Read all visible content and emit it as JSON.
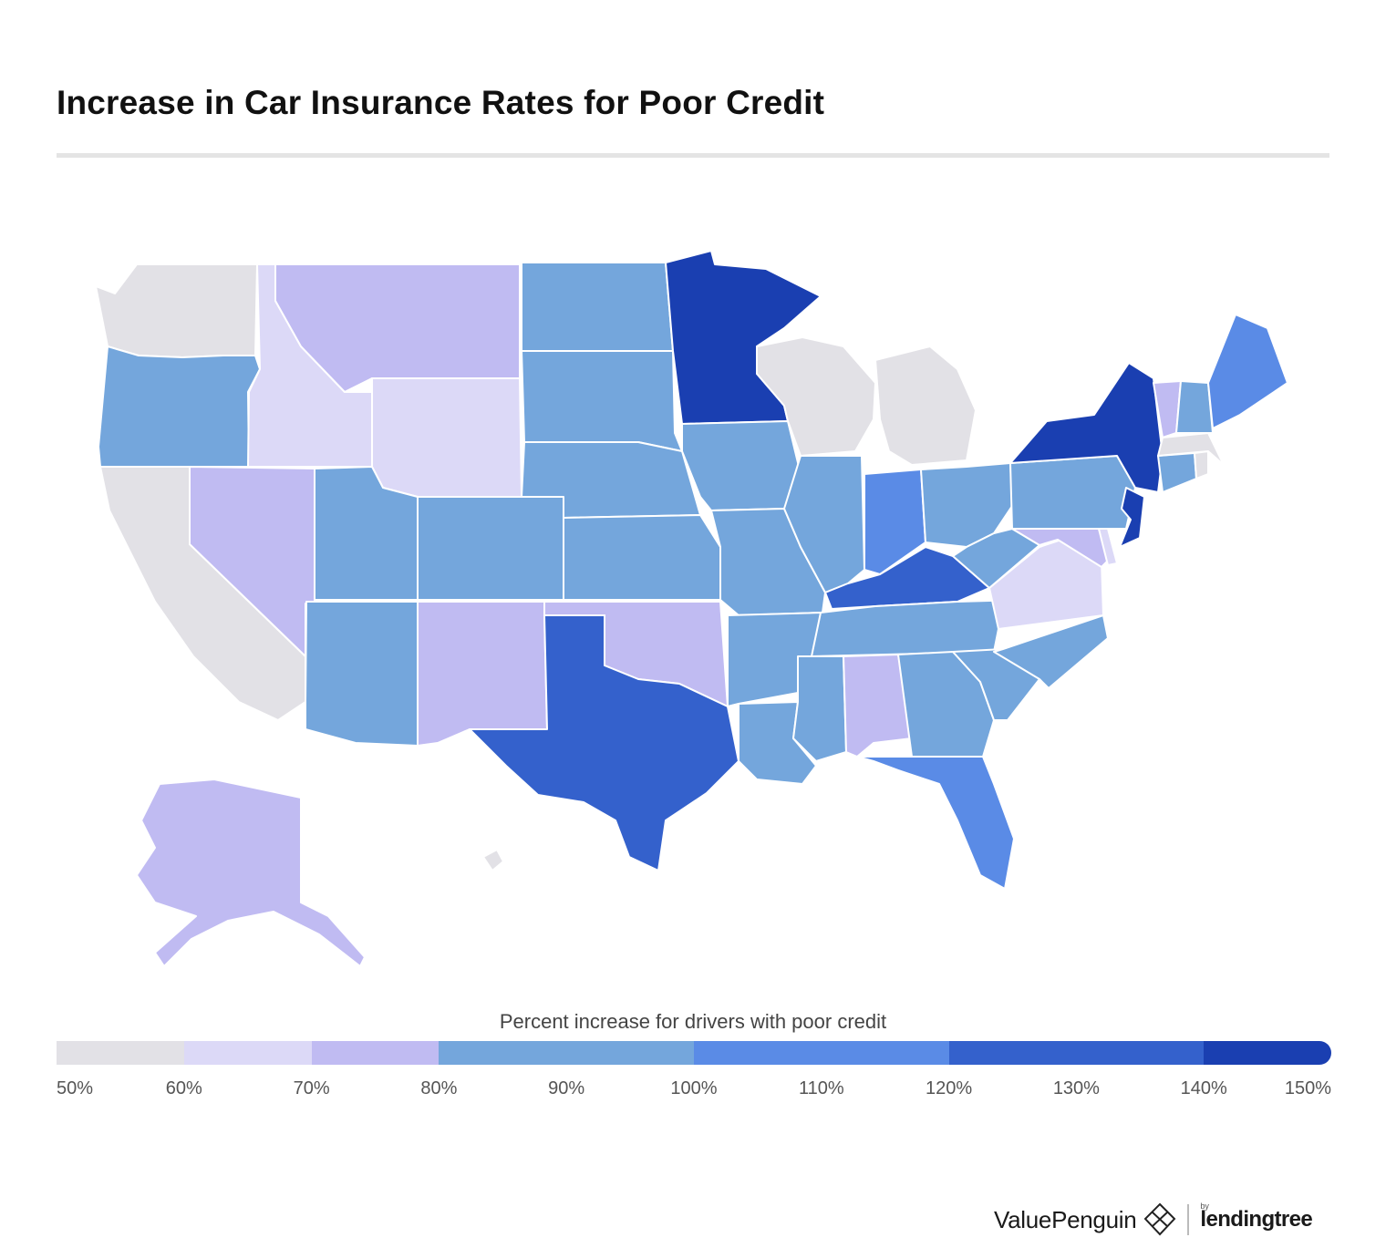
{
  "title": "Increase in Car Insurance Rates for Poor Credit",
  "legend": {
    "caption": "Percent increase for drivers with poor credit",
    "ticks": [
      "50%",
      "60%",
      "70%",
      "80%",
      "90%",
      "100%",
      "110%",
      "120%",
      "130%",
      "140%",
      "150%"
    ],
    "bins": [
      {
        "from": 50,
        "to": 60,
        "color": "#e2e1e6"
      },
      {
        "from": 60,
        "to": 70,
        "color": "#dcd9f7"
      },
      {
        "from": 70,
        "to": 80,
        "color": "#c0bbf2"
      },
      {
        "from": 80,
        "to": 90,
        "color": "#74a6dc"
      },
      {
        "from": 90,
        "to": 100,
        "color": "#74a6dc"
      },
      {
        "from": 100,
        "to": 110,
        "color": "#5a8be6"
      },
      {
        "from": 110,
        "to": 120,
        "color": "#5a8be6"
      },
      {
        "from": 120,
        "to": 130,
        "color": "#3461cc"
      },
      {
        "from": 130,
        "to": 140,
        "color": "#3461cc"
      },
      {
        "from": 140,
        "to": 150,
        "color": "#1a3fb1"
      }
    ]
  },
  "map_data": {
    "states": [
      {
        "id": "WA",
        "bin": 0
      },
      {
        "id": "OR",
        "bin": 3
      },
      {
        "id": "CA",
        "bin": 0
      },
      {
        "id": "NV",
        "bin": 2
      },
      {
        "id": "ID",
        "bin": 1
      },
      {
        "id": "MT",
        "bin": 2
      },
      {
        "id": "WY",
        "bin": 1
      },
      {
        "id": "UT",
        "bin": 3
      },
      {
        "id": "CO",
        "bin": 3
      },
      {
        "id": "AZ",
        "bin": 3
      },
      {
        "id": "NM",
        "bin": 2
      },
      {
        "id": "ND",
        "bin": 3
      },
      {
        "id": "SD",
        "bin": 3
      },
      {
        "id": "NE",
        "bin": 3
      },
      {
        "id": "KS",
        "bin": 3
      },
      {
        "id": "OK",
        "bin": 2
      },
      {
        "id": "TX",
        "bin": 7
      },
      {
        "id": "MN",
        "bin": 9
      },
      {
        "id": "IA",
        "bin": 3
      },
      {
        "id": "MO",
        "bin": 3
      },
      {
        "id": "AR",
        "bin": 3
      },
      {
        "id": "LA",
        "bin": 3
      },
      {
        "id": "WI",
        "bin": 0
      },
      {
        "id": "IL",
        "bin": 3
      },
      {
        "id": "MI",
        "bin": 0
      },
      {
        "id": "IN",
        "bin": 5
      },
      {
        "id": "OH",
        "bin": 3
      },
      {
        "id": "KY",
        "bin": 7
      },
      {
        "id": "TN",
        "bin": 3
      },
      {
        "id": "MS",
        "bin": 3
      },
      {
        "id": "AL",
        "bin": 2
      },
      {
        "id": "GA",
        "bin": 3
      },
      {
        "id": "FL",
        "bin": 5
      },
      {
        "id": "SC",
        "bin": 3
      },
      {
        "id": "NC",
        "bin": 3
      },
      {
        "id": "VA",
        "bin": 1
      },
      {
        "id": "WV",
        "bin": 3
      },
      {
        "id": "PA",
        "bin": 3
      },
      {
        "id": "NY",
        "bin": 9
      },
      {
        "id": "NJ",
        "bin": 9
      },
      {
        "id": "MD",
        "bin": 2
      },
      {
        "id": "DE",
        "bin": 1
      },
      {
        "id": "CT",
        "bin": 3
      },
      {
        "id": "RI",
        "bin": 0
      },
      {
        "id": "MA",
        "bin": 0
      },
      {
        "id": "VT",
        "bin": 2
      },
      {
        "id": "NH",
        "bin": 3
      },
      {
        "id": "ME",
        "bin": 5
      },
      {
        "id": "AK",
        "bin": 2
      },
      {
        "id": "HI",
        "bin": 0
      }
    ]
  },
  "brand": {
    "name": "ValuePenguin",
    "partner_by": "by",
    "partner": "lendingtree"
  }
}
